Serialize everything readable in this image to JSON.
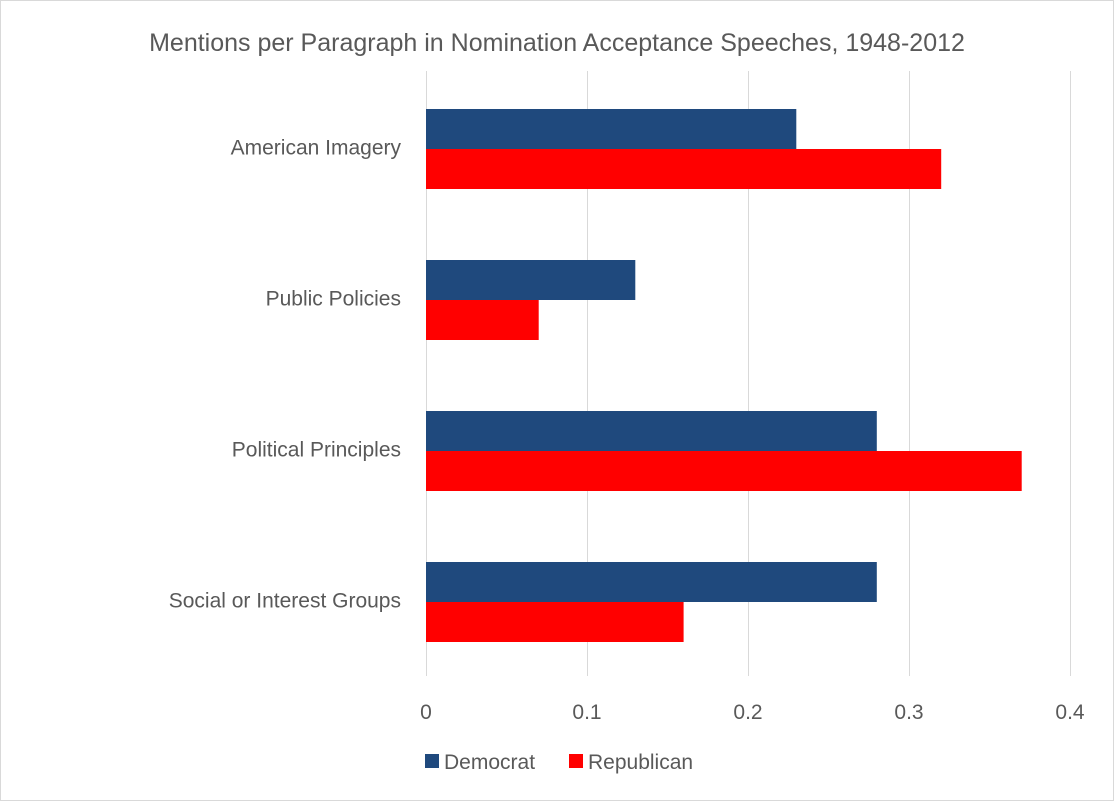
{
  "chart_data": {
    "type": "bar",
    "orientation": "horizontal",
    "title": "Mentions per Paragraph in Nomination Acceptance Speeches, 1948-2012",
    "xlabel": "",
    "ylabel": "",
    "categories": [
      "American Imagery",
      "Public Policies",
      "Political Principles",
      "Social or Interest Groups"
    ],
    "series": [
      {
        "name": "Democrat",
        "color": "#1f497d",
        "values": [
          0.23,
          0.13,
          0.28,
          0.28
        ]
      },
      {
        "name": "Republican",
        "color": "#ff0000",
        "values": [
          0.32,
          0.07,
          0.37,
          0.16
        ]
      }
    ],
    "xlim": [
      0,
      0.4
    ],
    "x_ticks": [
      "0",
      "0.1",
      "0.2",
      "0.3",
      "0.4"
    ],
    "x_tick_values": [
      0,
      0.1,
      0.2,
      0.3,
      0.4
    ],
    "grid": "vertical",
    "legend": "bottom"
  }
}
